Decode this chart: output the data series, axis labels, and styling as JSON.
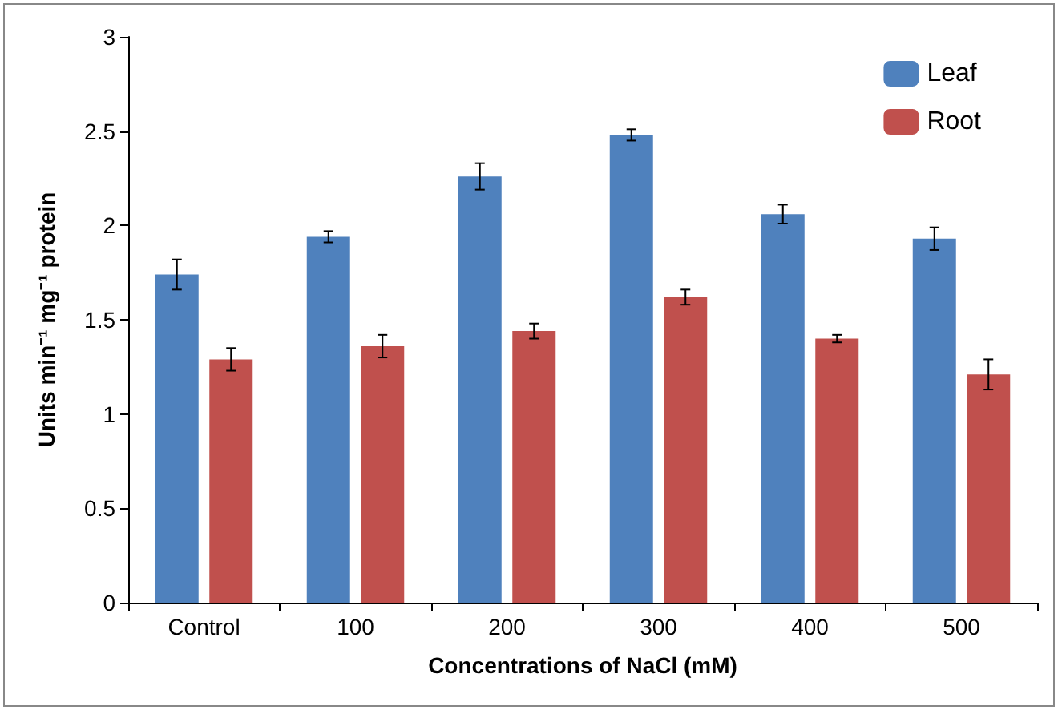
{
  "chart_data": {
    "type": "bar",
    "xlabel": "Concentrations of NaCl (mM)",
    "ylabel": "Units min⁻¹ mg⁻¹ protein",
    "categories": [
      "Control",
      "100",
      "200",
      "300",
      "400",
      "500"
    ],
    "series": [
      {
        "name": "Leaf",
        "color": "#4f81bd",
        "values": [
          1.74,
          1.94,
          2.26,
          2.48,
          2.06,
          1.93
        ],
        "errors": [
          0.08,
          0.03,
          0.07,
          0.03,
          0.05,
          0.06
        ]
      },
      {
        "name": "Root",
        "color": "#c0504d",
        "values": [
          1.29,
          1.36,
          1.44,
          1.62,
          1.4,
          1.21
        ],
        "errors": [
          0.06,
          0.06,
          0.04,
          0.04,
          0.02,
          0.08
        ]
      }
    ],
    "ylim": [
      0,
      3
    ],
    "yticks": [
      0,
      0.5,
      1,
      1.5,
      2,
      2.5,
      3
    ],
    "grid": false,
    "legend": "top right"
  }
}
